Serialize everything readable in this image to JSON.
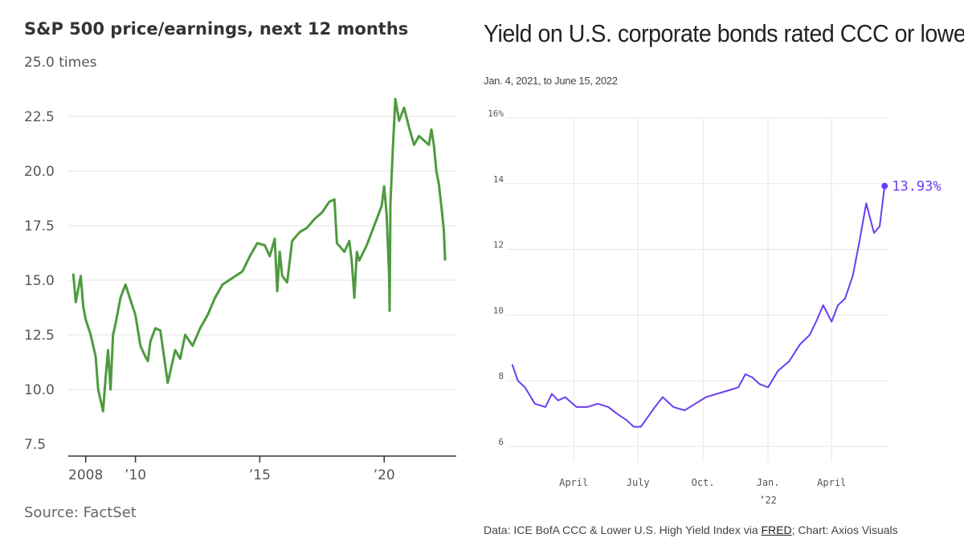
{
  "charts": {
    "pe": {
      "title": "S&P 500 price/earnings, next 12 months",
      "unit_label": "times",
      "source": "Source: FactSet",
      "line_color": "#4e9a3f"
    },
    "ccc": {
      "title": "Yield on U.S. corporate bonds rated CCC or lower",
      "subtitle": "Jan. 4, 2021, to June 15, 2022",
      "source_prefix": "Data: ICE BofA CCC & Lower U.S. High Yield Index via ",
      "source_link": "FRED",
      "source_suffix": "; Chart: Axios Visuals",
      "end_label": "13.93%",
      "line_color": "#6a3df0"
    }
  },
  "chart_data": [
    {
      "type": "line",
      "title": "S&P 500 price/earnings, next 12 months",
      "ylabel": "times",
      "ylim": [
        7.5,
        25.0
      ],
      "yticks": [
        7.5,
        10.0,
        12.5,
        15.0,
        17.5,
        20.0,
        22.5,
        25.0
      ],
      "ytick_labels": [
        "7.5",
        "10.0",
        "12.5",
        "15.0",
        "17.5",
        "20.0",
        "22.5",
        "25.0 times"
      ],
      "xlim": [
        2007.3,
        2022.9
      ],
      "xticks": [
        2008,
        2010,
        2015,
        2020
      ],
      "xtick_labels": [
        "2008",
        "’10",
        "’15",
        "’20"
      ],
      "grid": "horizontal",
      "series": [
        {
          "x": [
            2007.5,
            2007.6,
            2007.8,
            2007.9,
            2008.0,
            2008.2,
            2008.4,
            2008.5,
            2008.7,
            2008.8,
            2008.9,
            2009.0,
            2009.1,
            2009.2,
            2009.4,
            2009.6,
            2009.8,
            2010.0,
            2010.2,
            2010.4,
            2010.5,
            2010.6,
            2010.8,
            2011.0,
            2011.3,
            2011.6,
            2011.8,
            2012.0,
            2012.3,
            2012.6,
            2012.9,
            2013.2,
            2013.5,
            2013.9,
            2014.3,
            2014.6,
            2014.9,
            2015.2,
            2015.4,
            2015.6,
            2015.7,
            2015.8,
            2015.9,
            2016.1,
            2016.3,
            2016.6,
            2016.9,
            2017.2,
            2017.5,
            2017.8,
            2018.0,
            2018.1,
            2018.4,
            2018.6,
            2018.7,
            2018.8,
            2018.9,
            2019.0,
            2019.3,
            2019.6,
            2019.9,
            2020.0,
            2020.1,
            2020.2,
            2020.22,
            2020.25,
            2020.35,
            2020.45,
            2020.6,
            2020.8,
            2021.0,
            2021.2,
            2021.4,
            2021.6,
            2021.8,
            2021.9,
            2022.0,
            2022.1,
            2022.2,
            2022.3,
            2022.4,
            2022.45
          ],
          "y": [
            15.3,
            14.0,
            15.2,
            13.8,
            13.2,
            12.5,
            11.5,
            10.0,
            9.0,
            10.5,
            11.8,
            10.0,
            12.5,
            13.0,
            14.2,
            14.8,
            14.1,
            13.4,
            12.0,
            11.5,
            11.3,
            12.2,
            12.8,
            12.7,
            10.3,
            11.8,
            11.4,
            12.5,
            12.0,
            12.8,
            13.4,
            14.2,
            14.8,
            15.1,
            15.4,
            16.1,
            16.7,
            16.6,
            16.1,
            16.9,
            14.5,
            16.3,
            15.2,
            14.9,
            16.8,
            17.2,
            17.4,
            17.8,
            18.1,
            18.6,
            18.7,
            16.7,
            16.3,
            16.8,
            15.8,
            14.2,
            16.3,
            15.9,
            16.6,
            17.5,
            18.4,
            19.3,
            18.0,
            15.2,
            13.6,
            18.5,
            21.0,
            23.3,
            22.3,
            22.9,
            22.0,
            21.2,
            21.6,
            21.4,
            21.2,
            21.9,
            21.2,
            20.0,
            19.4,
            18.4,
            17.3,
            15.9
          ]
        }
      ]
    },
    {
      "type": "line",
      "title": "Yield on U.S. corporate bonds rated CCC or lower",
      "subtitle": "Jan. 4, 2021, to June 15, 2022",
      "ylim": [
        6,
        16
      ],
      "yticks": [
        6,
        8,
        10,
        12,
        14,
        16
      ],
      "ytick_labels": [
        "6",
        "8",
        "10",
        "12",
        "14",
        "16%"
      ],
      "xlim": [
        "2021-01-01",
        "2022-06-25"
      ],
      "xticks": [
        "2021-04-01",
        "2021-07-01",
        "2021-10-01",
        "2022-01-01",
        "2022-04-01"
      ],
      "xtick_labels": [
        "April",
        "July",
        "Oct.",
        "Jan.",
        "April"
      ],
      "xtick_sublabels": [
        "",
        "",
        "",
        "’22",
        ""
      ],
      "grid": "both",
      "annotation": "13.93%",
      "series": [
        {
          "x": [
            "2021-01-04",
            "2021-01-12",
            "2021-01-22",
            "2021-02-05",
            "2021-02-20",
            "2021-03-01",
            "2021-03-10",
            "2021-03-20",
            "2021-04-05",
            "2021-04-20",
            "2021-05-05",
            "2021-05-20",
            "2021-06-01",
            "2021-06-15",
            "2021-06-25",
            "2021-07-05",
            "2021-07-15",
            "2021-07-25",
            "2021-08-05",
            "2021-08-20",
            "2021-09-05",
            "2021-09-20",
            "2021-10-05",
            "2021-10-20",
            "2021-11-05",
            "2021-11-20",
            "2021-11-30",
            "2021-12-10",
            "2021-12-20",
            "2022-01-01",
            "2022-01-15",
            "2022-01-31",
            "2022-02-15",
            "2022-03-01",
            "2022-03-10",
            "2022-03-20",
            "2022-04-01",
            "2022-04-10",
            "2022-04-20",
            "2022-05-01",
            "2022-05-10",
            "2022-05-20",
            "2022-05-31",
            "2022-06-08",
            "2022-06-15"
          ],
          "y": [
            8.5,
            8.0,
            7.8,
            7.3,
            7.2,
            7.6,
            7.4,
            7.5,
            7.2,
            7.2,
            7.3,
            7.2,
            7.0,
            6.8,
            6.6,
            6.6,
            6.9,
            7.2,
            7.5,
            7.2,
            7.1,
            7.3,
            7.5,
            7.6,
            7.7,
            7.8,
            8.2,
            8.1,
            7.9,
            7.8,
            8.3,
            8.6,
            9.1,
            9.4,
            9.8,
            10.3,
            9.8,
            10.3,
            10.5,
            11.2,
            12.2,
            13.4,
            12.5,
            12.7,
            13.93
          ]
        }
      ]
    }
  ]
}
